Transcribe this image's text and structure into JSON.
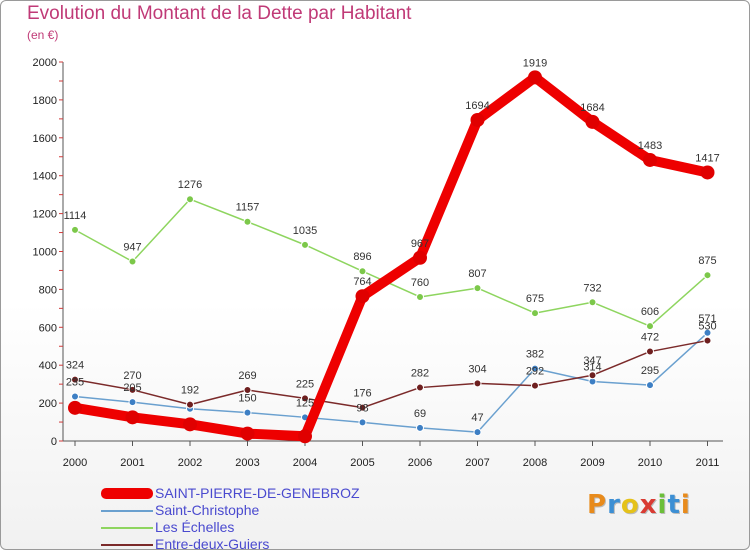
{
  "header": {
    "title": "Evolution du Montant de la Dette par Habitant",
    "subtitle": "(en €)"
  },
  "brand": {
    "logo_text": "Proxiti",
    "letter_colors": [
      "#e88b1c",
      "#3c8fd4",
      "#e5c21a",
      "#d93b33",
      "#6cbf3a",
      "#3c8fd4",
      "#e88b1c"
    ]
  },
  "chart_data": {
    "type": "line",
    "title": "Evolution du Montant de la Dette par Habitant",
    "subtitle": "(en €)",
    "xlabel": "",
    "ylabel": "",
    "categories": [
      "2000",
      "2001",
      "2002",
      "2003",
      "2004",
      "2005",
      "2006",
      "2007",
      "2008",
      "2009",
      "2010",
      "2011"
    ],
    "yticks": [
      0,
      200,
      400,
      600,
      800,
      1000,
      1200,
      1400,
      1600,
      1800,
      2000
    ],
    "ylim": [
      0,
      2000
    ],
    "grid": false,
    "legend_position": "bottom-left",
    "series": [
      {
        "name": "SAINT-PIERRE-DE-GENEBROZ",
        "color": "#ee0000",
        "marker_color": "#e00000",
        "width": "thick",
        "labels": [
          "",
          "",
          "",
          "",
          "",
          "764",
          "967",
          "1694",
          "1919",
          "1684",
          "1483",
          "1417"
        ],
        "values": [
          175,
          125,
          88,
          39,
          25,
          764,
          967,
          1694,
          1919,
          1684,
          1483,
          1417
        ]
      },
      {
        "name": "Saint-Christophe",
        "color": "#6aa0cf",
        "marker_color": "#3d7fc4",
        "width": "thin",
        "labels": [
          "235",
          "205",
          "",
          "150",
          "125",
          "98",
          "69",
          "47",
          "382",
          "314",
          "295",
          "571"
        ],
        "values": [
          235,
          205,
          170,
          150,
          125,
          98,
          69,
          47,
          382,
          314,
          295,
          571
        ]
      },
      {
        "name": "Les Échelles",
        "color": "#8ed55f",
        "marker_color": "#7cc84a",
        "width": "thin",
        "labels": [
          "1114",
          "947",
          "1276",
          "1157",
          "1035",
          "896",
          "760",
          "807",
          "675",
          "732",
          "606",
          "875"
        ],
        "values": [
          1114,
          947,
          1276,
          1157,
          1035,
          896,
          760,
          807,
          675,
          732,
          606,
          875
        ]
      },
      {
        "name": "Entre-deux-Guiers",
        "color": "#7b2a2a",
        "marker_color": "#6e1f1f",
        "width": "thin",
        "labels": [
          "324",
          "270",
          "192",
          "269",
          "225",
          "176",
          "282",
          "304",
          "292",
          "347",
          "472",
          "530"
        ],
        "values": [
          324,
          270,
          192,
          269,
          225,
          176,
          282,
          304,
          292,
          347,
          472,
          530
        ]
      }
    ]
  }
}
